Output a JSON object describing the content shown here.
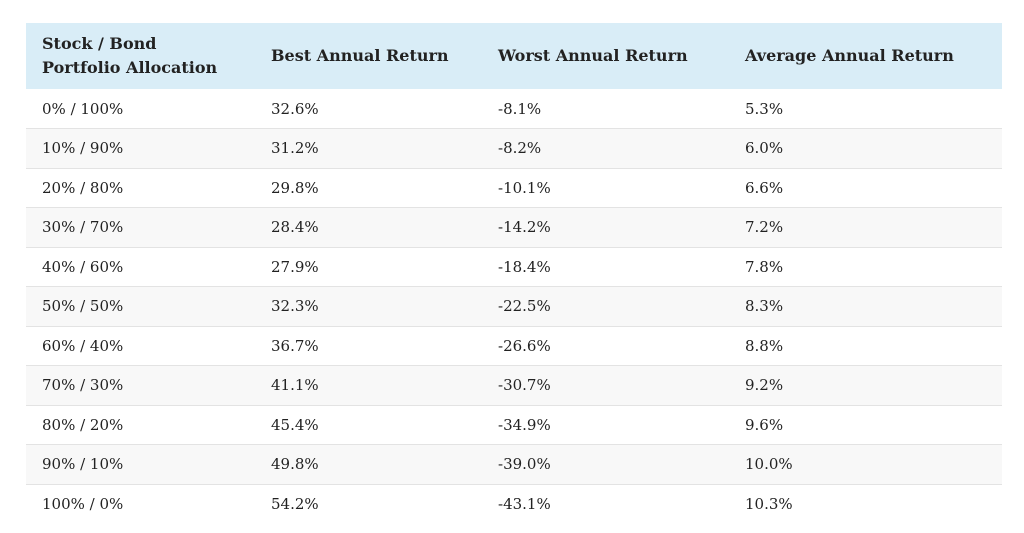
{
  "table": {
    "headers": [
      {
        "line1": "Stock / Bond",
        "line2": "Portfolio Allocation"
      },
      {
        "line1": "Best Annual Return",
        "line2": ""
      },
      {
        "line1": "Worst Annual Return",
        "line2": ""
      },
      {
        "line1": "Average Annual Return",
        "line2": ""
      }
    ],
    "rows": [
      [
        "0% / 100%",
        "32.6%",
        "-8.1%",
        "5.3%"
      ],
      [
        "10% / 90%",
        "31.2%",
        "-8.2%",
        "6.0%"
      ],
      [
        "20% / 80%",
        "29.8%",
        "-10.1%",
        "6.6%"
      ],
      [
        "30% / 70%",
        "28.4%",
        "-14.2%",
        "7.2%"
      ],
      [
        "40% / 60%",
        "27.9%",
        "-18.4%",
        "7.8%"
      ],
      [
        "50% / 50%",
        "32.3%",
        "-22.5%",
        "8.3%"
      ],
      [
        "60% / 40%",
        "36.7%",
        "-26.6%",
        "8.8%"
      ],
      [
        "70% / 30%",
        "41.1%",
        "-30.7%",
        "9.2%"
      ],
      [
        "80% / 20%",
        "45.4%",
        "-34.9%",
        "9.6%"
      ],
      [
        "90% / 10%",
        "49.8%",
        "-39.0%",
        "10.0%"
      ],
      [
        "100% / 0%",
        "54.2%",
        "-43.1%",
        "10.3%"
      ]
    ]
  },
  "colors": {
    "header_bg": "#d9edf7",
    "stripe_bg": "#f8f8f8",
    "text": "#222222",
    "divider": "#e3e3e3"
  }
}
